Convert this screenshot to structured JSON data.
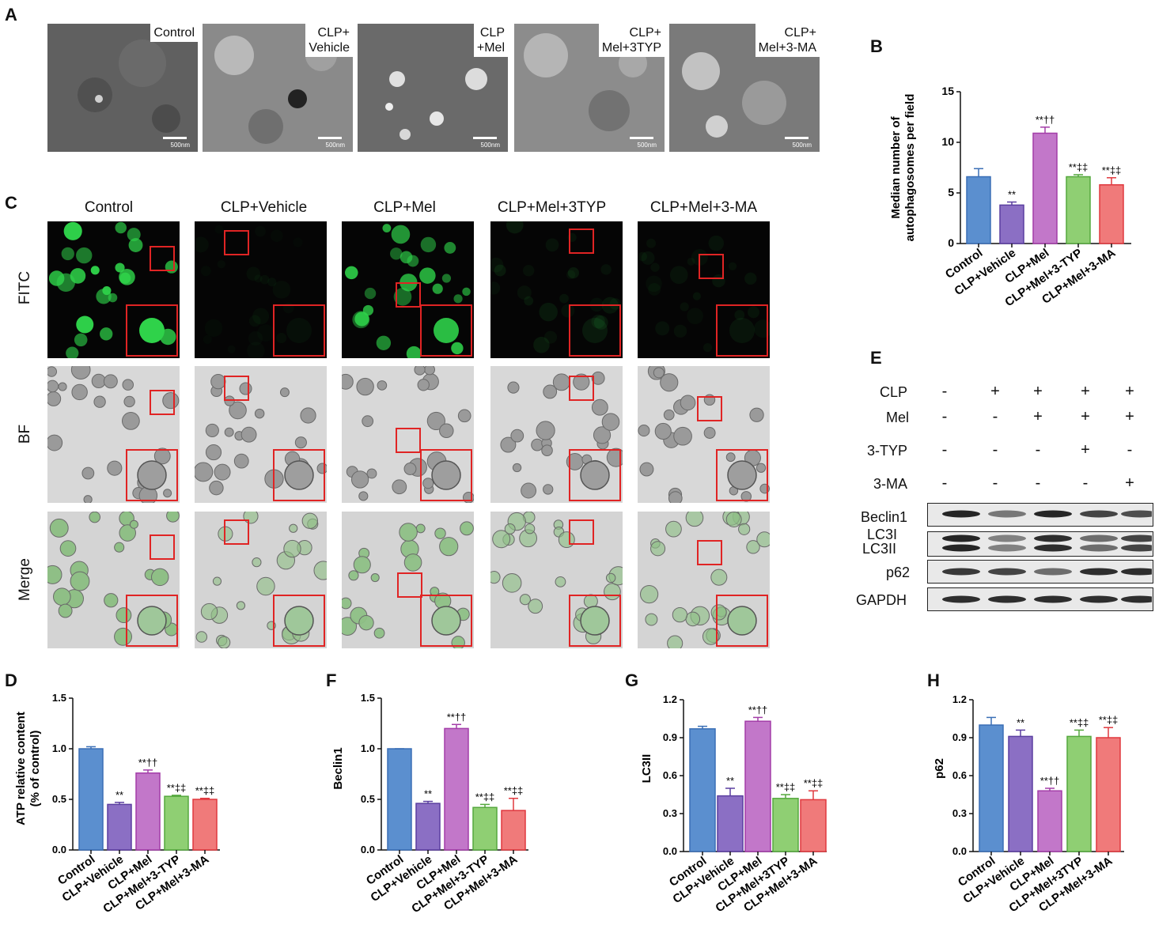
{
  "panel_letters": {
    "A": "A",
    "B": "B",
    "C": "C",
    "D": "D",
    "E": "E",
    "F": "F",
    "G": "G",
    "H": "H"
  },
  "panel_a": {
    "images": [
      {
        "label": "Control",
        "scale": "500nm"
      },
      {
        "label": "CLP+\nVehicle",
        "scale": "500nm"
      },
      {
        "label": "CLP\n+Mel",
        "scale": "500nm"
      },
      {
        "label": "CLP+\nMel+3TYP",
        "scale": "500nm"
      },
      {
        "label": "CLP+\nMel+3-MA",
        "scale": "500nm"
      }
    ]
  },
  "panel_c": {
    "columns": [
      "Control",
      "CLP+Vehicle",
      "CLP+Mel",
      "CLP+Mel+3TYP",
      "CLP+Mel+3-MA"
    ],
    "rows": [
      "FITC",
      "BF",
      "Merge"
    ]
  },
  "panel_e": {
    "treatments": [
      {
        "name": "CLP",
        "signs": [
          "-",
          "+",
          "+",
          "+",
          "+"
        ]
      },
      {
        "name": "Mel",
        "signs": [
          "-",
          "-",
          "+",
          "+",
          "+"
        ]
      },
      {
        "name": "3-TYP",
        "signs": [
          "-",
          "-",
          "-",
          "+",
          "-"
        ]
      },
      {
        "name": "3-MA",
        "signs": [
          "-",
          "-",
          "-",
          "-",
          "+"
        ]
      }
    ],
    "bands": [
      "Beclin1",
      "LC3I",
      "LC3II",
      "p62",
      "GAPDH"
    ]
  },
  "colors": {
    "series": [
      "#5b8fcf",
      "#8b6fc4",
      "#c277c9",
      "#8fcf73",
      "#f07a7a"
    ],
    "edges": [
      "#3b6fb6",
      "#5b3fa0",
      "#a33da8",
      "#55a83e",
      "#e0383e"
    ]
  },
  "chart_data": [
    {
      "id": "B",
      "type": "bar",
      "categories": [
        "Control",
        "CLP+Vehicle",
        "CLP+Mel",
        "CLP+Mel+3-TYP",
        "CLP+Mel+3-MA"
      ],
      "values": [
        6.6,
        3.8,
        10.9,
        6.6,
        5.8
      ],
      "errors": [
        0.8,
        0.3,
        0.6,
        0.2,
        0.7
      ],
      "annotations": [
        "",
        "**",
        "**††",
        "**‡‡",
        "**‡‡"
      ],
      "ylabel": "Median number of\nautophagosomes per field",
      "ylim": [
        0,
        15
      ],
      "yticks": [
        "0",
        "5",
        "10",
        "15"
      ],
      "tick_values": [
        0,
        5,
        10,
        15
      ]
    },
    {
      "id": "D",
      "type": "bar",
      "categories": [
        "Control",
        "CLP+Vehicle",
        "CLP+Mel",
        "CLP+Mel+3-TYP",
        "CLP+Mel+3-MA"
      ],
      "values": [
        1.0,
        0.45,
        0.76,
        0.53,
        0.5
      ],
      "errors": [
        0.02,
        0.02,
        0.03,
        0.01,
        0.01
      ],
      "annotations": [
        "",
        "**",
        "**††",
        "**‡‡",
        "**‡‡"
      ],
      "ylabel": "ATP relative content\n(% of control)",
      "ylim": [
        0,
        1.5
      ],
      "yticks": [
        "0.0",
        "0.5",
        "1.0",
        "1.5"
      ],
      "tick_values": [
        0,
        0.5,
        1.0,
        1.5
      ]
    },
    {
      "id": "F",
      "type": "bar",
      "categories": [
        "Control",
        "CLP+Vehicle",
        "CLP+Mel",
        "CLP+Mel+3-TYP",
        "CLP+Mel+3-MA"
      ],
      "values": [
        1.0,
        0.46,
        1.2,
        0.42,
        0.39
      ],
      "errors": [
        0.0,
        0.02,
        0.04,
        0.03,
        0.12
      ],
      "annotations": [
        "",
        "**",
        "**††",
        "**‡‡",
        "**‡‡"
      ],
      "ylabel": "Beclin1",
      "ylim": [
        0,
        1.5
      ],
      "yticks": [
        "0.0",
        "0.5",
        "1.0",
        "1.5"
      ],
      "tick_values": [
        0,
        0.5,
        1.0,
        1.5
      ]
    },
    {
      "id": "G",
      "type": "bar",
      "categories": [
        "Control",
        "CLP+Vehicle",
        "CLP+Mel",
        "CLP+Mel+3TYP",
        "CLP+Mel+3-MA"
      ],
      "values": [
        0.97,
        0.44,
        1.03,
        0.42,
        0.41
      ],
      "errors": [
        0.02,
        0.06,
        0.03,
        0.03,
        0.07
      ],
      "annotations": [
        "",
        "**",
        "**††",
        "**‡‡",
        "**‡‡"
      ],
      "ylabel": "LC3II",
      "ylim": [
        0,
        1.2
      ],
      "yticks": [
        "0.0",
        "0.3",
        "0.6",
        "0.9",
        "1.2"
      ],
      "tick_values": [
        0,
        0.3,
        0.6,
        0.9,
        1.2
      ]
    },
    {
      "id": "H",
      "type": "bar",
      "categories": [
        "Control",
        "CLP+Vehicle",
        "CLP+Mel",
        "CLP+Mel+3TYP",
        "CLP+Mel+3-MA"
      ],
      "values": [
        1.0,
        0.91,
        0.48,
        0.91,
        0.9
      ],
      "errors": [
        0.06,
        0.05,
        0.02,
        0.05,
        0.08
      ],
      "annotations": [
        "",
        "**",
        "**††",
        "**‡‡",
        "**‡‡"
      ],
      "ylabel": "p62",
      "ylim": [
        0,
        1.2
      ],
      "yticks": [
        "0.0",
        "0.3",
        "0.6",
        "0.9",
        "1.2"
      ],
      "tick_values": [
        0,
        0.3,
        0.6,
        0.9,
        1.2
      ]
    }
  ]
}
